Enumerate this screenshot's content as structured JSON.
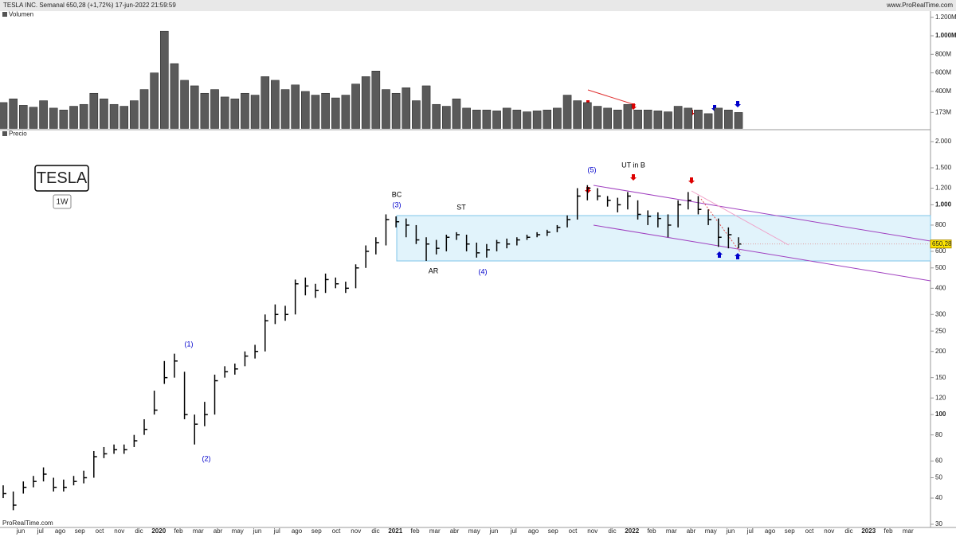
{
  "chart_data": {
    "type": "ohlc",
    "title": "TESLA INC. Semanal 650,28 (+1,72%) 17-jun-2022 21:59:59",
    "source": "www.ProRealTime.com",
    "watermark": "ProRealTime.com",
    "symbol": "TESLA",
    "timeframe": "1W",
    "color": "#000000",
    "xticks": [
      "jun",
      "jul",
      "ago",
      "sep",
      "oct",
      "nov",
      "dic",
      "2020",
      "feb",
      "mar",
      "abr",
      "may",
      "jun",
      "jul",
      "ago",
      "sep",
      "oct",
      "nov",
      "dic",
      "2021",
      "feb",
      "mar",
      "abr",
      "may",
      "jun",
      "jul",
      "ago",
      "sep",
      "oct",
      "nov",
      "dic",
      "2022",
      "feb",
      "mar",
      "abr",
      "may",
      "jun",
      "jul",
      "ago",
      "sep",
      "oct",
      "nov",
      "dic",
      "2023",
      "feb",
      "mar"
    ],
    "annotations": [
      "BC",
      "(3)",
      "ST",
      "AR",
      "(4)",
      "(5)",
      "UT in B",
      "(1)",
      "(2)"
    ],
    "volume": {
      "name": "Volumen",
      "color": "#5a5a5a",
      "values": [
        280,
        320,
        250,
        230,
        300,
        220,
        200,
        240,
        260,
        380,
        320,
        260,
        240,
        300,
        420,
        600,
        1050,
        700,
        520,
        460,
        380,
        420,
        340,
        320,
        380,
        360,
        560,
        520,
        420,
        470,
        400,
        360,
        380,
        330,
        360,
        480,
        560,
        620,
        420,
        380,
        440,
        300,
        460,
        260,
        240,
        320,
        220,
        200,
        200,
        190,
        220,
        200,
        180,
        190,
        200,
        220,
        360,
        300,
        280,
        240,
        220,
        200,
        260,
        200,
        200,
        190,
        180,
        240,
        220,
        200,
        160,
        220,
        200,
        173
      ],
      "ylim": [
        0,
        1200
      ],
      "yticks": [
        {
          "value": 1200,
          "label": "1.200M"
        },
        {
          "value": 1000,
          "label": "1.000M"
        },
        {
          "value": 800,
          "label": "800M"
        },
        {
          "value": 600,
          "label": "600M"
        },
        {
          "value": 400,
          "label": "400M"
        },
        {
          "value": 173,
          "label": "173M"
        }
      ]
    },
    "price": {
      "name": "Precio",
      "log": true,
      "high": [
        46,
        43,
        48,
        51,
        56,
        50,
        49,
        51,
        54,
        67,
        70,
        72,
        72,
        80,
        95,
        130,
        180,
        195,
        160,
        100,
        115,
        155,
        170,
        175,
        200,
        215,
        300,
        335,
        330,
        440,
        450,
        420,
        470,
        450,
        430,
        520,
        640,
        700,
        900,
        880,
        860,
        800,
        700,
        680,
        720,
        740,
        720,
        660,
        650,
        680,
        690,
        700,
        720,
        740,
        760,
        800,
        890,
        1200,
        1240,
        1200,
        1100,
        1080,
        1150,
        1050,
        940,
        920,
        900,
        1050,
        1150,
        1100,
        950,
        860,
        780,
        700
      ],
      "low": [
        40,
        35,
        42,
        45,
        48,
        43,
        43,
        46,
        47,
        50,
        62,
        65,
        65,
        70,
        80,
        100,
        140,
        150,
        95,
        72,
        88,
        100,
        150,
        155,
        170,
        185,
        200,
        270,
        280,
        300,
        370,
        360,
        380,
        400,
        380,
        400,
        500,
        580,
        640,
        780,
        700,
        650,
        540,
        580,
        600,
        680,
        600,
        560,
        560,
        600,
        620,
        640,
        680,
        700,
        710,
        740,
        780,
        850,
        1050,
        1050,
        980,
        920,
        950,
        850,
        800,
        780,
        700,
        780,
        950,
        900,
        800,
        630,
        620,
        620
      ],
      "close": [
        42,
        37,
        45,
        48,
        52,
        45,
        45,
        48,
        50,
        63,
        65,
        68,
        68,
        75,
        85,
        105,
        150,
        180,
        100,
        90,
        100,
        145,
        160,
        165,
        190,
        200,
        280,
        300,
        300,
        420,
        410,
        390,
        440,
        420,
        400,
        500,
        600,
        660,
        850,
        830,
        800,
        680,
        650,
        620,
        700,
        720,
        650,
        590,
        610,
        660,
        650,
        680,
        700,
        720,
        740,
        780,
        850,
        1100,
        1200,
        1100,
        1050,
        1000,
        1100,
        900,
        880,
        860,
        800,
        1000,
        1050,
        950,
        850,
        700,
        720,
        650.28
      ],
      "last_label": "650,28",
      "ylim": [
        30,
        2000
      ],
      "yticks": [
        {
          "value": 2000,
          "label": "2.000"
        },
        {
          "value": 1500,
          "label": "1.500"
        },
        {
          "value": 1200,
          "label": "1.200"
        },
        {
          "value": 1000,
          "label": "1.000"
        },
        800,
        600,
        500,
        400,
        300,
        250,
        200,
        150,
        120,
        100,
        80,
        60,
        50,
        40,
        30
      ]
    }
  }
}
